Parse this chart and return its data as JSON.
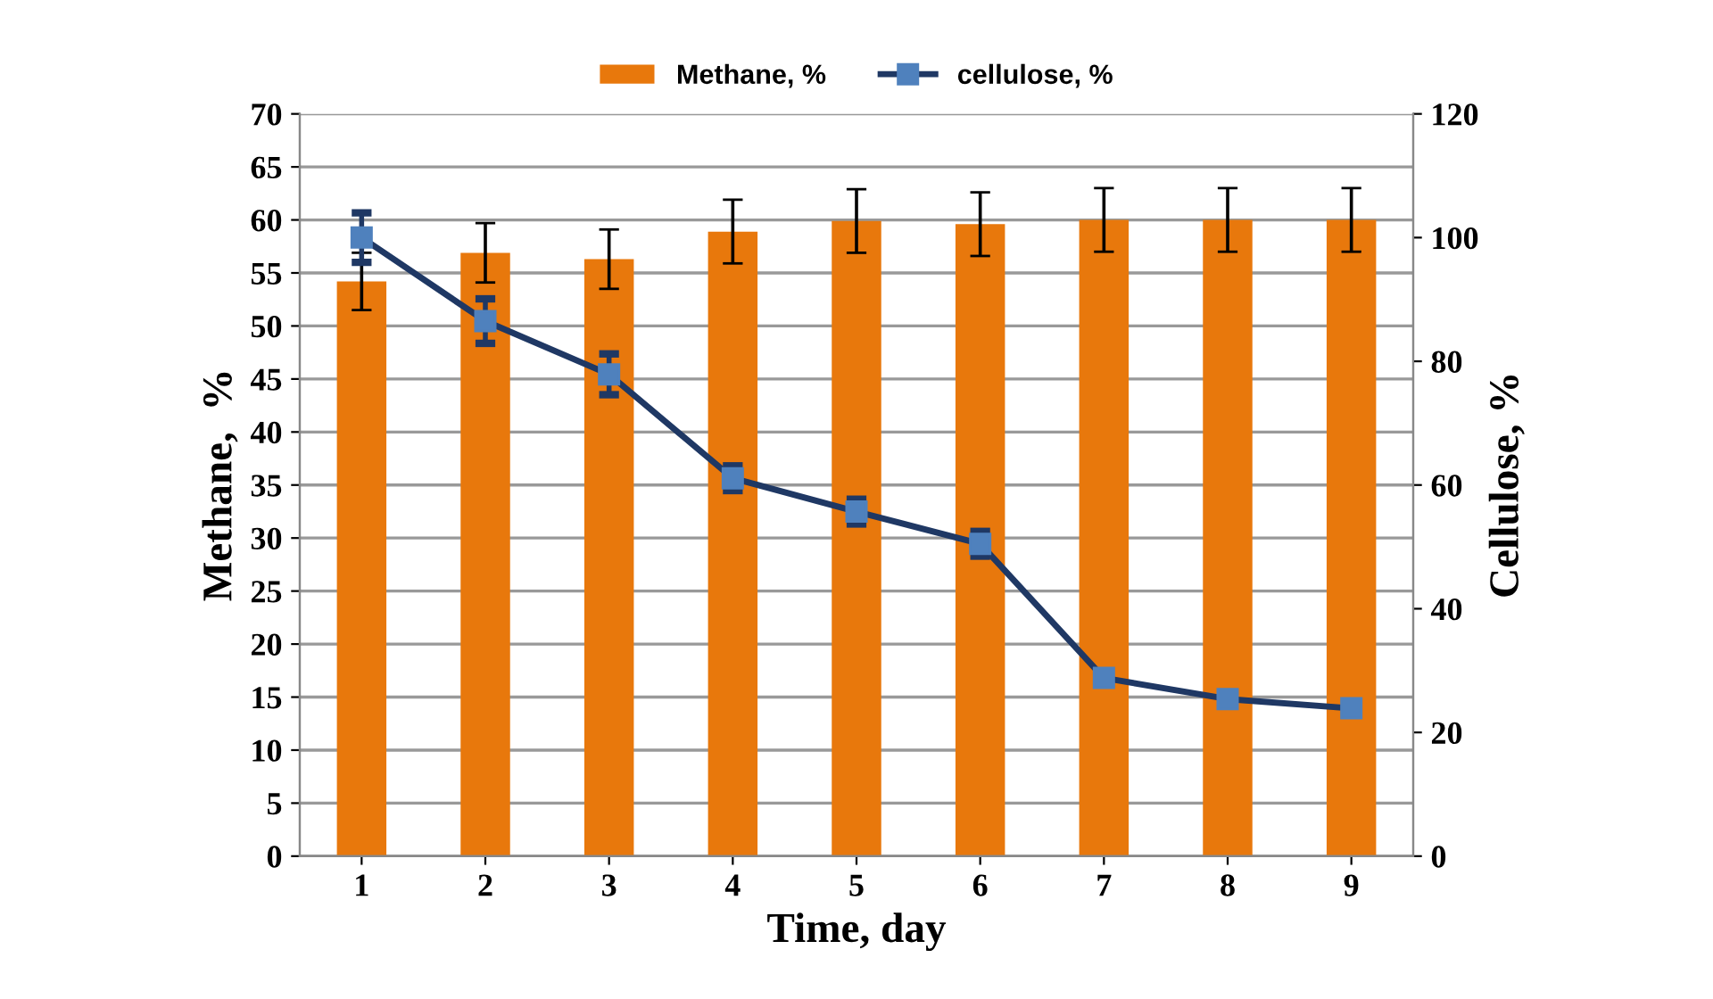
{
  "chart_data": {
    "type": "bar",
    "xlabel": "Time, day",
    "ylabel": "Methane,  %",
    "y2label": "Cellulose, %",
    "categories": [
      "1",
      "2",
      "3",
      "4",
      "5",
      "6",
      "7",
      "8",
      "9"
    ],
    "series": [
      {
        "name": "Methane, %",
        "color": "#e8780c",
        "values": [
          54.2,
          56.9,
          56.3,
          58.9,
          59.9,
          59.6,
          60,
          60,
          60
        ],
        "errors": [
          2.7,
          2.8,
          2.8,
          3,
          3,
          3,
          3,
          3,
          3
        ]
      },
      {
        "name": "cellulose, %",
        "type": "line",
        "axis": "y2",
        "color": "#1f3864",
        "marker": "square",
        "values": [
          100,
          86.5,
          77.9,
          61.1,
          55.7,
          50.5,
          28.8,
          25.4,
          23.9
        ],
        "errors": [
          4,
          3.6,
          3.3,
          2,
          2,
          2,
          null,
          null,
          null
        ]
      }
    ],
    "ylim": [
      0,
      70
    ],
    "yticks": [
      0,
      5,
      10,
      15,
      20,
      25,
      30,
      35,
      40,
      45,
      50,
      55,
      60,
      65,
      70
    ],
    "y2lim": [
      0,
      120
    ],
    "y2ticks": [
      0,
      20,
      40,
      60,
      80,
      100,
      120
    ],
    "grid": "y",
    "legend": "top"
  }
}
